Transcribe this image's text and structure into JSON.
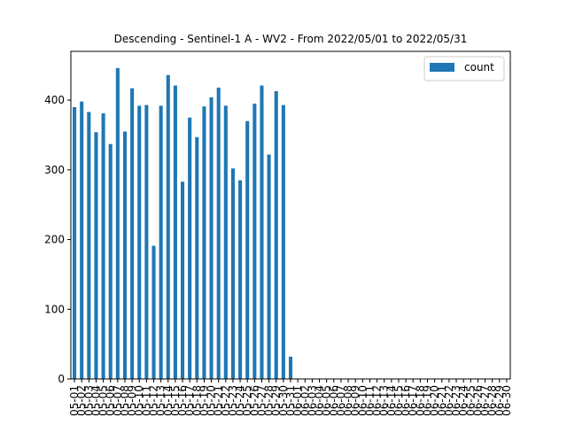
{
  "chart_data": {
    "type": "bar",
    "title": "Descending - Sentinel-1 A - WV2 - From 2022/05/01 to 2022/05/31",
    "xlabel": "",
    "ylabel": "",
    "ylim": [
      0,
      470
    ],
    "yticks": [
      0,
      100,
      200,
      300,
      400
    ],
    "legend": "top-right",
    "grid": false,
    "bar_color": "#1f77b4",
    "categories": [
      "05-01",
      "05-02",
      "05-03",
      "05-04",
      "05-05",
      "05-06",
      "05-07",
      "05-08",
      "05-09",
      "05-10",
      "05-11",
      "05-12",
      "05-13",
      "05-14",
      "05-15",
      "05-16",
      "05-17",
      "05-18",
      "05-19",
      "05-20",
      "05-21",
      "05-22",
      "05-23",
      "05-24",
      "05-25",
      "05-26",
      "05-27",
      "05-28",
      "05-29",
      "05-30",
      "05-31",
      "06-01",
      "06-02",
      "06-03",
      "06-04",
      "06-05",
      "06-06",
      "06-07",
      "06-08",
      "06-09",
      "06-10",
      "06-11",
      "06-12",
      "06-13",
      "06-14",
      "06-15",
      "06-16",
      "06-17",
      "06-18",
      "06-19",
      "06-20",
      "06-21",
      "06-22",
      "06-23",
      "06-24",
      "06-25",
      "06-26",
      "06-27",
      "06-28",
      "06-29",
      "06-30"
    ],
    "series": [
      {
        "name": "count",
        "values": [
          390,
          398,
          383,
          354,
          381,
          337,
          446,
          355,
          417,
          392,
          393,
          191,
          392,
          436,
          421,
          283,
          375,
          347,
          391,
          404,
          418,
          392,
          302,
          285,
          370,
          395,
          421,
          322,
          413,
          393,
          32,
          0,
          0,
          0,
          0,
          0,
          0,
          0,
          0,
          0,
          0,
          0,
          0,
          0,
          0,
          0,
          0,
          0,
          0,
          0,
          0,
          0,
          0,
          0,
          0,
          0,
          0,
          0,
          0,
          0,
          0
        ]
      }
    ]
  }
}
